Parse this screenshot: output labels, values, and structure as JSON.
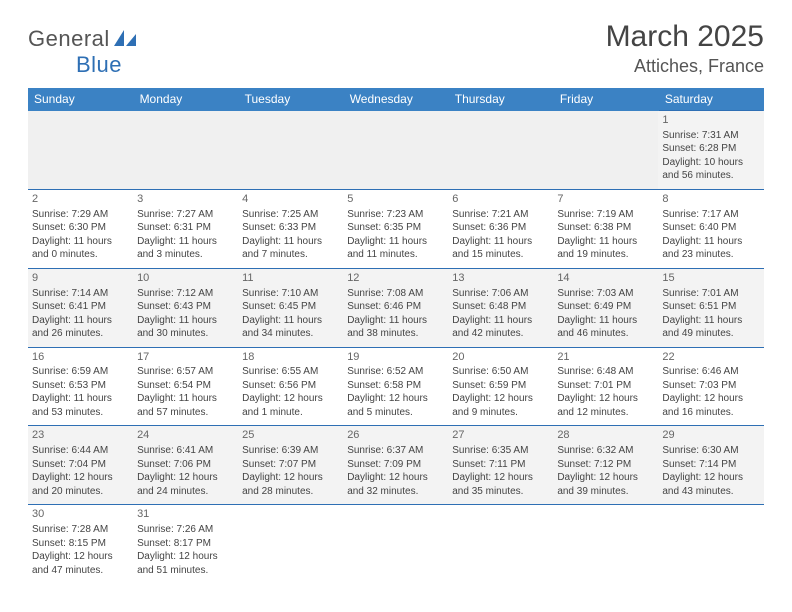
{
  "logo": {
    "part1": "General",
    "part2": "Blue"
  },
  "title": "March 2025",
  "location": "Attiches, France",
  "colors": {
    "header_bg": "#3b82c4",
    "header_text": "#ffffff",
    "rule": "#2e6fb4",
    "text": "#444444",
    "alt_row": "#f7f7f7"
  },
  "dayHeaders": [
    "Sunday",
    "Monday",
    "Tuesday",
    "Wednesday",
    "Thursday",
    "Friday",
    "Saturday"
  ],
  "weeks": [
    [
      null,
      null,
      null,
      null,
      null,
      null,
      {
        "n": "1",
        "sr": "Sunrise: 7:31 AM",
        "ss": "Sunset: 6:28 PM",
        "dl": "Daylight: 10 hours and 56 minutes."
      }
    ],
    [
      {
        "n": "2",
        "sr": "Sunrise: 7:29 AM",
        "ss": "Sunset: 6:30 PM",
        "dl": "Daylight: 11 hours and 0 minutes."
      },
      {
        "n": "3",
        "sr": "Sunrise: 7:27 AM",
        "ss": "Sunset: 6:31 PM",
        "dl": "Daylight: 11 hours and 3 minutes."
      },
      {
        "n": "4",
        "sr": "Sunrise: 7:25 AM",
        "ss": "Sunset: 6:33 PM",
        "dl": "Daylight: 11 hours and 7 minutes."
      },
      {
        "n": "5",
        "sr": "Sunrise: 7:23 AM",
        "ss": "Sunset: 6:35 PM",
        "dl": "Daylight: 11 hours and 11 minutes."
      },
      {
        "n": "6",
        "sr": "Sunrise: 7:21 AM",
        "ss": "Sunset: 6:36 PM",
        "dl": "Daylight: 11 hours and 15 minutes."
      },
      {
        "n": "7",
        "sr": "Sunrise: 7:19 AM",
        "ss": "Sunset: 6:38 PM",
        "dl": "Daylight: 11 hours and 19 minutes."
      },
      {
        "n": "8",
        "sr": "Sunrise: 7:17 AM",
        "ss": "Sunset: 6:40 PM",
        "dl": "Daylight: 11 hours and 23 minutes."
      }
    ],
    [
      {
        "n": "9",
        "sr": "Sunrise: 7:14 AM",
        "ss": "Sunset: 6:41 PM",
        "dl": "Daylight: 11 hours and 26 minutes."
      },
      {
        "n": "10",
        "sr": "Sunrise: 7:12 AM",
        "ss": "Sunset: 6:43 PM",
        "dl": "Daylight: 11 hours and 30 minutes."
      },
      {
        "n": "11",
        "sr": "Sunrise: 7:10 AM",
        "ss": "Sunset: 6:45 PM",
        "dl": "Daylight: 11 hours and 34 minutes."
      },
      {
        "n": "12",
        "sr": "Sunrise: 7:08 AM",
        "ss": "Sunset: 6:46 PM",
        "dl": "Daylight: 11 hours and 38 minutes."
      },
      {
        "n": "13",
        "sr": "Sunrise: 7:06 AM",
        "ss": "Sunset: 6:48 PM",
        "dl": "Daylight: 11 hours and 42 minutes."
      },
      {
        "n": "14",
        "sr": "Sunrise: 7:03 AM",
        "ss": "Sunset: 6:49 PM",
        "dl": "Daylight: 11 hours and 46 minutes."
      },
      {
        "n": "15",
        "sr": "Sunrise: 7:01 AM",
        "ss": "Sunset: 6:51 PM",
        "dl": "Daylight: 11 hours and 49 minutes."
      }
    ],
    [
      {
        "n": "16",
        "sr": "Sunrise: 6:59 AM",
        "ss": "Sunset: 6:53 PM",
        "dl": "Daylight: 11 hours and 53 minutes."
      },
      {
        "n": "17",
        "sr": "Sunrise: 6:57 AM",
        "ss": "Sunset: 6:54 PM",
        "dl": "Daylight: 11 hours and 57 minutes."
      },
      {
        "n": "18",
        "sr": "Sunrise: 6:55 AM",
        "ss": "Sunset: 6:56 PM",
        "dl": "Daylight: 12 hours and 1 minute."
      },
      {
        "n": "19",
        "sr": "Sunrise: 6:52 AM",
        "ss": "Sunset: 6:58 PM",
        "dl": "Daylight: 12 hours and 5 minutes."
      },
      {
        "n": "20",
        "sr": "Sunrise: 6:50 AM",
        "ss": "Sunset: 6:59 PM",
        "dl": "Daylight: 12 hours and 9 minutes."
      },
      {
        "n": "21",
        "sr": "Sunrise: 6:48 AM",
        "ss": "Sunset: 7:01 PM",
        "dl": "Daylight: 12 hours and 12 minutes."
      },
      {
        "n": "22",
        "sr": "Sunrise: 6:46 AM",
        "ss": "Sunset: 7:03 PM",
        "dl": "Daylight: 12 hours and 16 minutes."
      }
    ],
    [
      {
        "n": "23",
        "sr": "Sunrise: 6:44 AM",
        "ss": "Sunset: 7:04 PM",
        "dl": "Daylight: 12 hours and 20 minutes."
      },
      {
        "n": "24",
        "sr": "Sunrise: 6:41 AM",
        "ss": "Sunset: 7:06 PM",
        "dl": "Daylight: 12 hours and 24 minutes."
      },
      {
        "n": "25",
        "sr": "Sunrise: 6:39 AM",
        "ss": "Sunset: 7:07 PM",
        "dl": "Daylight: 12 hours and 28 minutes."
      },
      {
        "n": "26",
        "sr": "Sunrise: 6:37 AM",
        "ss": "Sunset: 7:09 PM",
        "dl": "Daylight: 12 hours and 32 minutes."
      },
      {
        "n": "27",
        "sr": "Sunrise: 6:35 AM",
        "ss": "Sunset: 7:11 PM",
        "dl": "Daylight: 12 hours and 35 minutes."
      },
      {
        "n": "28",
        "sr": "Sunrise: 6:32 AM",
        "ss": "Sunset: 7:12 PM",
        "dl": "Daylight: 12 hours and 39 minutes."
      },
      {
        "n": "29",
        "sr": "Sunrise: 6:30 AM",
        "ss": "Sunset: 7:14 PM",
        "dl": "Daylight: 12 hours and 43 minutes."
      }
    ],
    [
      {
        "n": "30",
        "sr": "Sunrise: 7:28 AM",
        "ss": "Sunset: 8:15 PM",
        "dl": "Daylight: 12 hours and 47 minutes."
      },
      {
        "n": "31",
        "sr": "Sunrise: 7:26 AM",
        "ss": "Sunset: 8:17 PM",
        "dl": "Daylight: 12 hours and 51 minutes."
      },
      null,
      null,
      null,
      null,
      null
    ]
  ]
}
